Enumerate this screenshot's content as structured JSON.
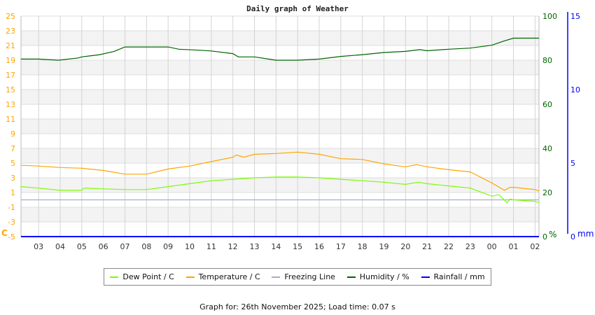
{
  "chart_data": {
    "type": "line",
    "title": "Daily graph of Weather",
    "x_range": [
      "02:11",
      "02:11"
    ],
    "x_ticks": [
      "03",
      "04",
      "05",
      "06",
      "07",
      "08",
      "09",
      "10",
      "11",
      "12",
      "13",
      "14",
      "15",
      "16",
      "17",
      "18",
      "19",
      "20",
      "21",
      "22",
      "23",
      "00",
      "01",
      "02"
    ],
    "y_left": {
      "label": "C",
      "range": [
        -5,
        25
      ],
      "ticks": [
        -5,
        -3,
        -1,
        1,
        3,
        5,
        7,
        9,
        11,
        13,
        15,
        17,
        19,
        21,
        23,
        25
      ],
      "color": "#ffa500"
    },
    "y_right_humidity": {
      "label": "%",
      "range": [
        0,
        100
      ],
      "ticks": [
        0,
        20,
        40,
        60,
        80,
        100
      ],
      "color": "#006400"
    },
    "y_right_rain": {
      "label": "mm",
      "range": [
        0,
        15
      ],
      "ticks": [
        0,
        5,
        10,
        15
      ],
      "color": "#0000ff"
    },
    "grid": true,
    "legend_position": "bottom",
    "series": [
      {
        "name": "Dew Point / C",
        "axis": "left",
        "color": "#7cfc00",
        "x": [
          "02:11",
          "03:00",
          "04:00",
          "05:00",
          "05:05",
          "06:00",
          "07:00",
          "08:00",
          "09:00",
          "10:00",
          "11:00",
          "12:00",
          "13:00",
          "14:00",
          "15:00",
          "16:00",
          "17:00",
          "18:00",
          "19:00",
          "20:00",
          "20:35",
          "21:00",
          "22:00",
          "23:00",
          "00:00",
          "00:20",
          "00:42",
          "00:50",
          "01:00",
          "02:00",
          "02:11"
        ],
        "y": [
          1.8,
          1.6,
          1.3,
          1.3,
          1.6,
          1.5,
          1.4,
          1.4,
          1.8,
          2.2,
          2.6,
          2.8,
          3.0,
          3.1,
          3.1,
          3.0,
          2.8,
          2.6,
          2.4,
          2.1,
          2.4,
          2.2,
          1.9,
          1.6,
          0.5,
          0.7,
          -0.4,
          0.1,
          0.0,
          -0.2,
          -0.4
        ]
      },
      {
        "name": "Temperature / C",
        "axis": "left",
        "color": "#ffa500",
        "x": [
          "02:11",
          "03:00",
          "04:00",
          "05:00",
          "06:00",
          "07:00",
          "08:00",
          "09:00",
          "10:00",
          "11:00",
          "12:00",
          "12:10",
          "12:30",
          "13:00",
          "14:00",
          "15:00",
          "16:00",
          "17:00",
          "18:00",
          "19:00",
          "20:00",
          "20:30",
          "21:00",
          "22:00",
          "23:00",
          "00:00",
          "00:35",
          "00:50",
          "01:00",
          "02:00",
          "02:11"
        ],
        "y": [
          4.7,
          4.6,
          4.4,
          4.3,
          4.0,
          3.5,
          3.5,
          4.2,
          4.6,
          5.2,
          5.8,
          6.1,
          5.8,
          6.2,
          6.3,
          6.5,
          6.2,
          5.6,
          5.5,
          4.9,
          4.5,
          4.8,
          4.5,
          4.1,
          3.8,
          2.3,
          1.3,
          1.7,
          1.7,
          1.4,
          1.2
        ]
      },
      {
        "name": "Freezing Line",
        "axis": "left",
        "color": "#a0b0c8",
        "x": [
          "02:11",
          "02:11"
        ],
        "y": [
          0,
          0
        ]
      },
      {
        "name": "Humidity / %",
        "axis": "right_humidity",
        "color": "#006400",
        "x": [
          "02:11",
          "03:00",
          "03:55",
          "04:50",
          "05:00",
          "05:50",
          "06:30",
          "07:00",
          "08:00",
          "09:00",
          "09:30",
          "10:30",
          "11:00",
          "12:00",
          "12:15",
          "13:00",
          "14:00",
          "15:00",
          "16:00",
          "17:00",
          "18:00",
          "19:00",
          "20:00",
          "20:40",
          "21:00",
          "22:00",
          "23:00",
          "00:00",
          "00:30",
          "01:00",
          "02:11"
        ],
        "y": [
          80.5,
          80.5,
          80.0,
          81.0,
          81.5,
          82.5,
          84.0,
          86.0,
          86.0,
          86.0,
          85.0,
          84.5,
          84.2,
          83.0,
          81.5,
          81.5,
          80.0,
          80.0,
          80.5,
          81.7,
          82.5,
          83.5,
          84.0,
          84.8,
          84.3,
          85.0,
          85.5,
          86.8,
          88.5,
          90.0,
          90.0
        ]
      },
      {
        "name": "Rainfall / mm",
        "axis": "right_rain",
        "color": "#0000ff",
        "x": [
          "02:11",
          "02:11"
        ],
        "y": [
          0,
          0
        ]
      }
    ]
  },
  "footer": "Graph for: 26th November 2025; Load time: 0.07 s"
}
